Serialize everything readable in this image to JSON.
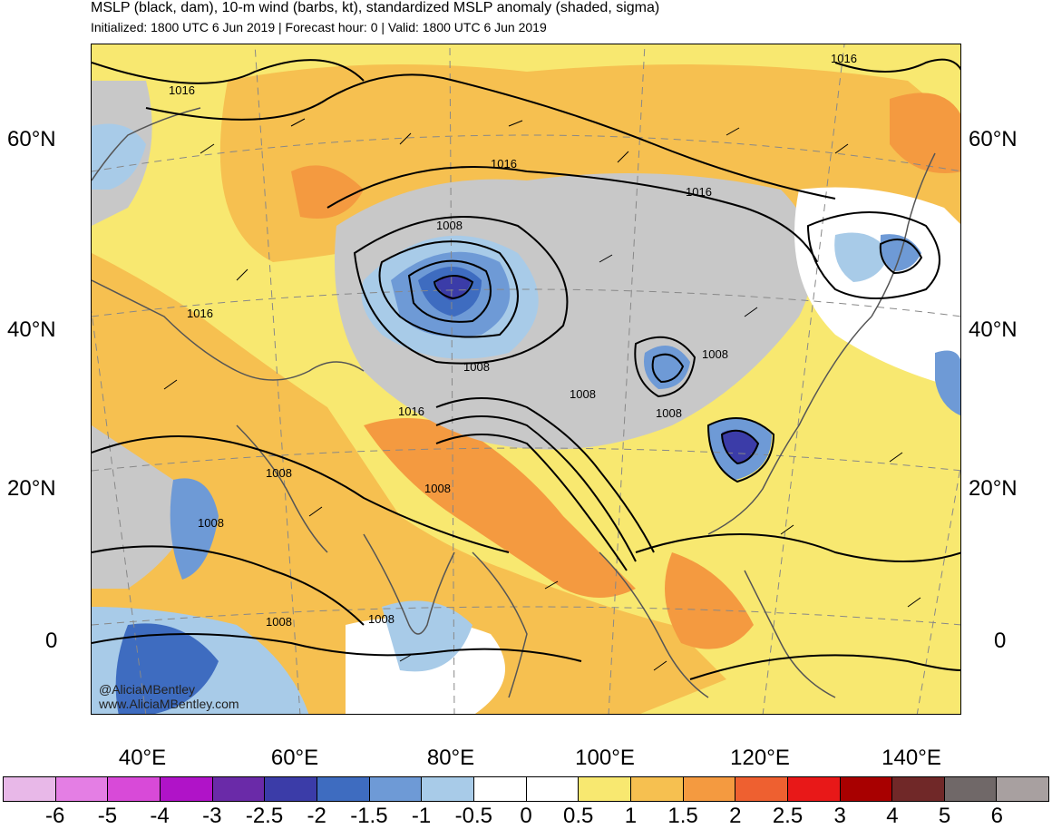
{
  "header": {
    "title": "MSLP (black, dam), 10-m wind (barbs, kt), standardized MSLP anomaly (shaded, sigma)",
    "subtitle": "Initialized: 1800 UTC 6 Jun 2019 | Forecast hour: 0 | Valid: 1800 UTC 6 Jun 2019"
  },
  "axes": {
    "lat_left": [
      "60°N",
      "40°N",
      "20°N",
      "0"
    ],
    "lat_right": [
      "60°N",
      "40°N",
      "20°N",
      "0"
    ],
    "lon": [
      "40°E",
      "60°E",
      "80°E",
      "100°E",
      "120°E",
      "140°E"
    ]
  },
  "contour_labels": [
    "1016",
    "1016",
    "1016",
    "1016",
    "1016",
    "1008",
    "1008",
    "1008",
    "1008",
    "1016",
    "1008",
    "1008",
    "1008",
    "1008",
    "1008",
    "1008"
  ],
  "credit": {
    "handle": "@AliciaMBentley",
    "site": "www.AliciaMBentley.com"
  },
  "colorbar": {
    "colors": [
      "#e8b8e8",
      "#e47ee4",
      "#d84ad8",
      "#b013c8",
      "#6a2aa8",
      "#3b3ca8",
      "#3e6cc0",
      "#6e9ad6",
      "#a8cbe8",
      "#ffffff",
      "#ffffff",
      "#f8e870",
      "#f6c050",
      "#f49a40",
      "#ee6030",
      "#e81818",
      "#a80000",
      "#702828",
      "#706868",
      "#a8a0a0"
    ],
    "tick_labels": [
      "-6",
      "-5",
      "-4",
      "-3",
      "-2.5",
      "-2",
      "-1.5",
      "-1",
      "-0.5",
      "0",
      "0.5",
      "1",
      "1.5",
      "2",
      "2.5",
      "3",
      "4",
      "5",
      "6"
    ]
  }
}
